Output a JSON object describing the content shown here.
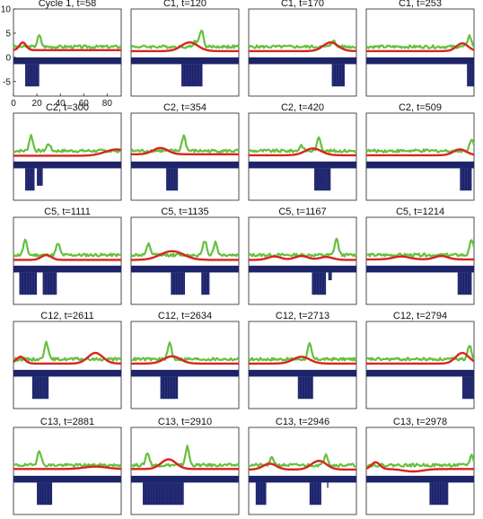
{
  "colors": {
    "green": "#66bf3f",
    "red": "#d8261c",
    "bars": "#1d2468",
    "frame": "#222222"
  },
  "chart_data": {
    "type": "line",
    "panels": [
      {
        "title": "Cycle 1, t=58",
        "green_peaks": [
          [
            22,
            2.3
          ]
        ],
        "red_bumps": [
          [
            8,
            1.6,
            4
          ]
        ],
        "bars": [
          [
            10,
            22,
            -6
          ]
        ],
        "red_base": 1.5
      },
      {
        "title": "C1, t=120",
        "green_peaks": [
          [
            60,
            3.6
          ],
          [
            55,
            1.2
          ]
        ],
        "red_bumps": [
          [
            50,
            1.8,
            10
          ]
        ],
        "bars": [
          [
            43,
            61,
            -6
          ]
        ],
        "red_base": 1.3
      },
      {
        "title": "C1, t=170",
        "green_peaks": [
          [
            72,
            1.4
          ]
        ],
        "red_bumps": [
          [
            70,
            1.8,
            9
          ]
        ],
        "bars": [
          [
            71,
            82,
            -6
          ]
        ],
        "red_base": 1.3
      },
      {
        "title": "C1, t=253",
        "green_peaks": [
          [
            88,
            2.3
          ]
        ],
        "red_bumps": [
          [
            82,
            1.6,
            7
          ]
        ],
        "bars": [
          [
            86,
            92,
            -6
          ]
        ],
        "red_base": 1.3
      },
      {
        "title": "C2, t=300",
        "green_peaks": [
          [
            15,
            3.2
          ],
          [
            30,
            1.5
          ]
        ],
        "red_bumps": [
          [
            88,
            1.3,
            14
          ]
        ],
        "bars": [
          [
            10,
            18,
            -6
          ],
          [
            20,
            25,
            -5
          ]
        ],
        "red_base": 1.2
      },
      {
        "title": "C2, t=354",
        "green_peaks": [
          [
            45,
            3.2
          ]
        ],
        "red_bumps": [
          [
            25,
            1.3,
            9
          ]
        ],
        "bars": [
          [
            30,
            40,
            -6
          ]
        ],
        "red_base": 1.5
      },
      {
        "title": "C2, t=420",
        "green_peaks": [
          [
            60,
            2.8
          ],
          [
            45,
            1.2
          ]
        ],
        "red_bumps": [
          [
            55,
            1.4,
            10
          ]
        ],
        "bars": [
          [
            56,
            70,
            -6
          ]
        ],
        "red_base": 1.3
      },
      {
        "title": "C2, t=509",
        "green_peaks": [
          [
            90,
            2.6
          ]
        ],
        "red_bumps": [
          [
            80,
            1.2,
            8
          ]
        ],
        "bars": [
          [
            80,
            90,
            -6
          ]
        ],
        "red_base": 1.3
      },
      {
        "title": "C5, t=1111",
        "green_peaks": [
          [
            10,
            3.0
          ],
          [
            38,
            2.4
          ]
        ],
        "red_bumps": [
          [
            28,
            1.0,
            6
          ]
        ],
        "bars": [
          [
            5,
            20,
            -6
          ],
          [
            25,
            37,
            -6
          ]
        ],
        "red_base": 1.2
      },
      {
        "title": "C5, t=1135",
        "green_peaks": [
          [
            15,
            2.2
          ],
          [
            63,
            3.0
          ],
          [
            72,
            2.6
          ]
        ],
        "red_bumps": [
          [
            35,
            1.8,
            14
          ]
        ],
        "bars": [
          [
            34,
            46,
            -6
          ],
          [
            60,
            67,
            -6
          ]
        ],
        "red_base": 1.2
      },
      {
        "title": "C5, t=1167",
        "green_peaks": [
          [
            75,
            3.4
          ]
        ],
        "red_bumps": [
          [
            22,
            0.7,
            8
          ],
          [
            45,
            0.8,
            8
          ],
          [
            66,
            0.6,
            8
          ]
        ],
        "bars": [
          [
            54,
            66,
            -6
          ],
          [
            68,
            71,
            -3
          ]
        ],
        "red_base": 1.2
      },
      {
        "title": "C5, t=1214",
        "green_peaks": [
          [
            90,
            3.2
          ]
        ],
        "red_bumps": [
          [
            30,
            0.6,
            10
          ],
          [
            64,
            0.7,
            8
          ]
        ],
        "bars": [
          [
            78,
            90,
            -6
          ]
        ],
        "red_base": 1.3
      },
      {
        "title": "C12, t=2611",
        "green_peaks": [
          [
            28,
            3.8
          ]
        ],
        "red_bumps": [
          [
            6,
            1.4,
            5
          ],
          [
            70,
            2.2,
            9
          ]
        ],
        "bars": [
          [
            16,
            30,
            -6
          ]
        ],
        "red_base": 1.3
      },
      {
        "title": "C12, t=2634",
        "green_peaks": [
          [
            33,
            3.4
          ]
        ],
        "red_bumps": [
          [
            35,
            1.5,
            10
          ]
        ],
        "bars": [
          [
            25,
            40,
            -6
          ]
        ],
        "red_base": 1.3
      },
      {
        "title": "C12, t=2713",
        "green_peaks": [
          [
            52,
            3.1
          ]
        ],
        "red_bumps": [
          [
            45,
            1.4,
            10
          ]
        ],
        "bars": [
          [
            42,
            55,
            -6
          ]
        ],
        "red_base": 1.3
      },
      {
        "title": "C12, t=2794",
        "green_peaks": [
          [
            88,
            3.0
          ]
        ],
        "red_bumps": [
          [
            82,
            2.2,
            8
          ]
        ],
        "bars": [
          [
            82,
            92,
            -6
          ]
        ],
        "red_base": 1.3
      },
      {
        "title": "C13, t=2881",
        "green_peaks": [
          [
            22,
            3.2
          ]
        ],
        "red_bumps": [
          [
            70,
            0.5,
            14
          ]
        ],
        "bars": [
          [
            20,
            33,
            -6
          ]
        ],
        "red_base": 1.4
      },
      {
        "title": "C13, t=2910",
        "green_peaks": [
          [
            14,
            2.6
          ],
          [
            48,
            3.8
          ]
        ],
        "red_bumps": [
          [
            32,
            2.0,
            9
          ]
        ],
        "bars": [
          [
            10,
            45,
            -6
          ]
        ],
        "red_base": 1.4
      },
      {
        "title": "C13, t=2946",
        "green_peaks": [
          [
            20,
            1.6
          ],
          [
            66,
            2.4
          ]
        ],
        "red_bumps": [
          [
            18,
            1.2,
            8
          ],
          [
            60,
            1.8,
            9
          ]
        ],
        "bars": [
          [
            6,
            15,
            -6
          ],
          [
            52,
            62,
            -6
          ],
          [
            67,
            68,
            -2.5
          ]
        ],
        "red_base": 1.3
      },
      {
        "title": "C13, t=2978",
        "green_peaks": [
          [
            90,
            2.0
          ]
        ],
        "red_bumps": [
          [
            8,
            1.4,
            5
          ],
          [
            40,
            -0.5,
            12
          ]
        ],
        "bars": [
          [
            54,
            70,
            -6
          ]
        ],
        "red_base": 1.4
      }
    ],
    "xlim": [
      0,
      92
    ],
    "ylim": [
      -8,
      10
    ],
    "xticks": [
      "0",
      "20",
      "40",
      "60",
      "80"
    ],
    "yticks": [
      "10",
      "5",
      "0",
      "-5"
    ],
    "green_baseline": 2.2,
    "band": {
      "top": 0,
      "bottom": -1.4
    }
  }
}
